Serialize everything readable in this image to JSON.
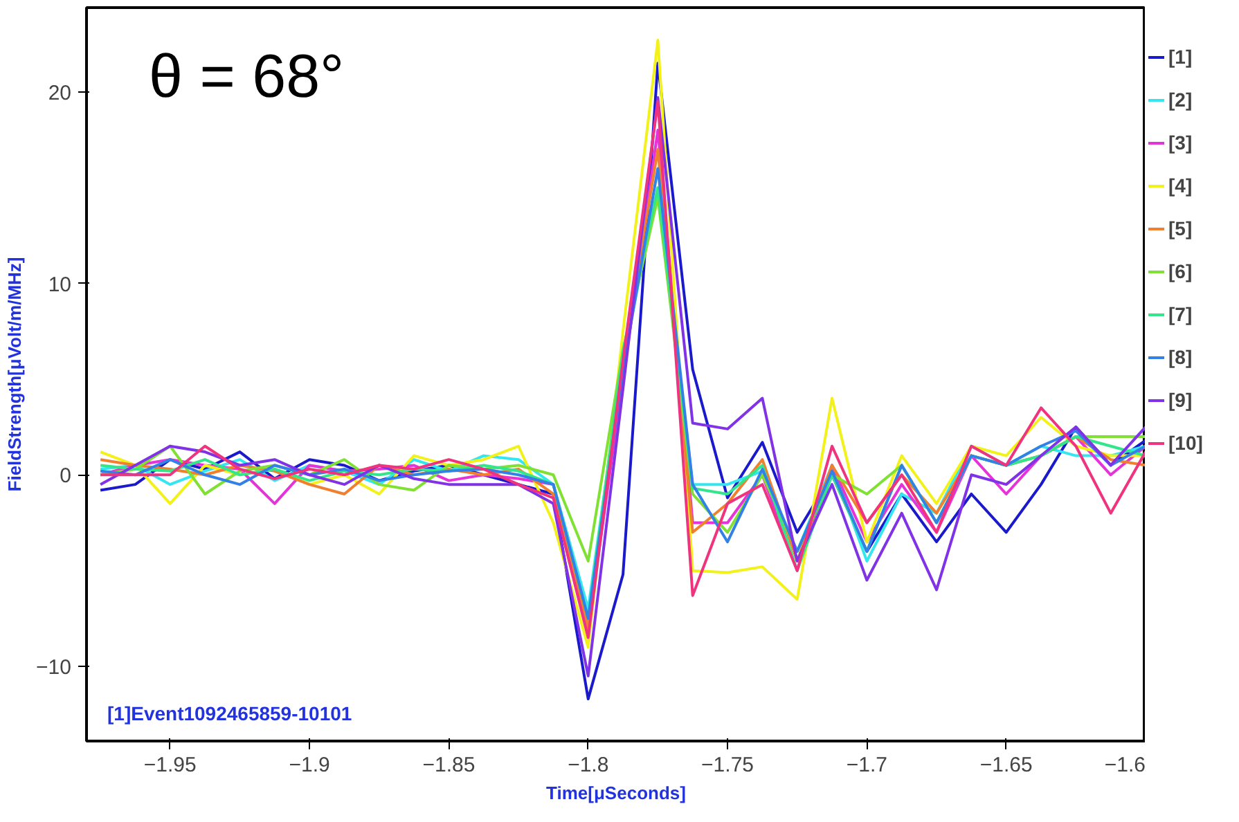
{
  "chart_data": {
    "type": "line",
    "xlabel": "Time[μSeconds]",
    "ylabel": "FieldStrength[μVolt/m/MHz]",
    "annotations": [
      "θ = 68°",
      "[1]Event1092465859-10101"
    ],
    "x": [
      -1.975,
      -1.9625,
      -1.95,
      -1.9375,
      -1.925,
      -1.9125,
      -1.9,
      -1.8875,
      -1.875,
      -1.8625,
      -1.85,
      -1.8375,
      -1.825,
      -1.8125,
      -1.8,
      -1.7875,
      -1.775,
      -1.7625,
      -1.75,
      -1.7375,
      -1.725,
      -1.7125,
      -1.7,
      -1.6875,
      -1.675,
      -1.6625,
      -1.65,
      -1.6375,
      -1.625,
      -1.6125,
      -1.6
    ],
    "xlim": [
      -1.98,
      -1.6
    ],
    "ylim": [
      -13.9,
      24.4
    ],
    "xticks": [
      -1.95,
      -1.9,
      -1.85,
      -1.8,
      -1.75,
      -1.7,
      -1.65,
      -1.6
    ],
    "yticks": [
      -10,
      0,
      10,
      20
    ],
    "grid": false,
    "legend": "right",
    "marker": "none",
    "line_style": "solid",
    "series": [
      {
        "name": "[1]",
        "color": "#1a1acc",
        "values": [
          -0.8,
          -0.5,
          0.8,
          0.3,
          1.2,
          -0.2,
          0.8,
          0.5,
          -0.3,
          0.2,
          0.5,
          0.0,
          -0.5,
          -1.0,
          -11.7,
          -5.2,
          21.5,
          5.5,
          -1.2,
          1.7,
          -3.0,
          0.0,
          -4.0,
          -1.0,
          -3.5,
          -1.0,
          -3.0,
          -0.5,
          2.5,
          0.5,
          1.8
        ]
      },
      {
        "name": "[2]",
        "color": "#33e6f0",
        "values": [
          0.3,
          0.5,
          -0.5,
          0.2,
          0.8,
          -0.3,
          0.5,
          0.2,
          -0.5,
          0.8,
          0.2,
          1.0,
          0.8,
          -0.5,
          -7.0,
          6.0,
          15.0,
          -0.5,
          -0.5,
          0.2,
          -4.0,
          0.5,
          -4.5,
          -1.0,
          -2.0,
          1.5,
          0.5,
          1.5,
          1.0,
          1.0,
          1.5
        ]
      },
      {
        "name": "[3]",
        "color": "#e633d9",
        "values": [
          0.0,
          0.5,
          0.8,
          0.5,
          0.3,
          -1.5,
          0.5,
          0.2,
          0.3,
          0.5,
          -0.3,
          0.0,
          -0.2,
          -0.5,
          -8.0,
          5.0,
          18.0,
          -2.5,
          -2.5,
          0.0,
          -5.0,
          0.5,
          -3.5,
          -0.5,
          -3.0,
          1.0,
          -1.0,
          1.0,
          2.0,
          0.0,
          1.5
        ]
      },
      {
        "name": "[4]",
        "color": "#f2f21a",
        "values": [
          1.2,
          0.5,
          -1.5,
          0.5,
          0.0,
          0.3,
          -0.5,
          0.0,
          -1.0,
          1.0,
          0.5,
          0.8,
          1.5,
          -2.5,
          -9.0,
          7.5,
          22.7,
          -5.0,
          -5.1,
          -4.8,
          -6.5,
          4.0,
          -3.5,
          1.0,
          -1.5,
          1.5,
          1.0,
          3.0,
          1.5,
          1.0,
          1.0
        ]
      },
      {
        "name": "[5]",
        "color": "#f08030",
        "values": [
          0.8,
          0.5,
          0.3,
          0.0,
          0.5,
          0.2,
          -0.5,
          -1.0,
          0.5,
          0.0,
          0.3,
          0.0,
          0.3,
          -1.0,
          -8.0,
          6.0,
          17.0,
          -3.0,
          -1.5,
          0.8,
          -4.5,
          0.5,
          -2.5,
          0.0,
          -2.0,
          1.0,
          0.5,
          1.0,
          2.0,
          0.8,
          0.5
        ]
      },
      {
        "name": "[6]",
        "color": "#80e033",
        "values": [
          0.0,
          0.3,
          1.5,
          -1.0,
          0.2,
          0.5,
          0.0,
          0.8,
          -0.5,
          -0.8,
          0.5,
          0.3,
          0.5,
          0.0,
          -4.5,
          6.5,
          14.5,
          -1.0,
          -3.0,
          0.0,
          -4.0,
          0.0,
          -1.0,
          0.5,
          -2.5,
          1.0,
          0.5,
          1.0,
          2.0,
          2.0,
          2.0
        ]
      },
      {
        "name": "[7]",
        "color": "#33e68c",
        "values": [
          0.5,
          0.3,
          0.2,
          0.8,
          0.0,
          0.3,
          -0.3,
          0.2,
          0.0,
          0.3,
          0.2,
          0.5,
          0.2,
          -0.5,
          -7.5,
          6.5,
          15.0,
          -0.7,
          -1.0,
          0.5,
          -5.0,
          0.0,
          -4.0,
          0.5,
          -2.5,
          1.0,
          0.5,
          1.0,
          2.0,
          1.5,
          1.0
        ]
      },
      {
        "name": "[8]",
        "color": "#3380e6",
        "values": [
          0.2,
          0.0,
          0.8,
          0.0,
          -0.5,
          0.5,
          0.0,
          0.3,
          -0.3,
          0.0,
          0.2,
          0.3,
          0.0,
          -0.5,
          -7.5,
          5.5,
          16.0,
          -0.5,
          -3.5,
          0.3,
          -4.0,
          0.2,
          -4.0,
          0.5,
          -2.5,
          1.0,
          0.5,
          1.5,
          2.3,
          0.5,
          1.5
        ]
      },
      {
        "name": "[9]",
        "color": "#8033e6",
        "values": [
          -0.5,
          0.5,
          1.5,
          1.2,
          0.5,
          0.8,
          0.0,
          -0.5,
          0.5,
          -0.2,
          -0.5,
          -0.5,
          -0.5,
          -1.5,
          -10.5,
          4.5,
          19.7,
          2.7,
          2.4,
          4.0,
          -4.5,
          -0.5,
          -5.5,
          -2.0,
          -6.0,
          0.0,
          -0.5,
          1.0,
          2.5,
          0.5,
          2.5
        ]
      },
      {
        "name": "[10]",
        "color": "#f0337f",
        "values": [
          0.0,
          0.0,
          0.0,
          1.5,
          0.3,
          -0.2,
          0.3,
          0.0,
          0.5,
          0.3,
          0.8,
          0.3,
          -0.5,
          -1.2,
          -8.5,
          6.0,
          19.5,
          -6.3,
          -1.5,
          -0.5,
          -5.0,
          1.5,
          -2.5,
          0.0,
          -3.0,
          1.5,
          0.5,
          3.5,
          1.5,
          -2.0,
          1.2
        ]
      }
    ]
  }
}
